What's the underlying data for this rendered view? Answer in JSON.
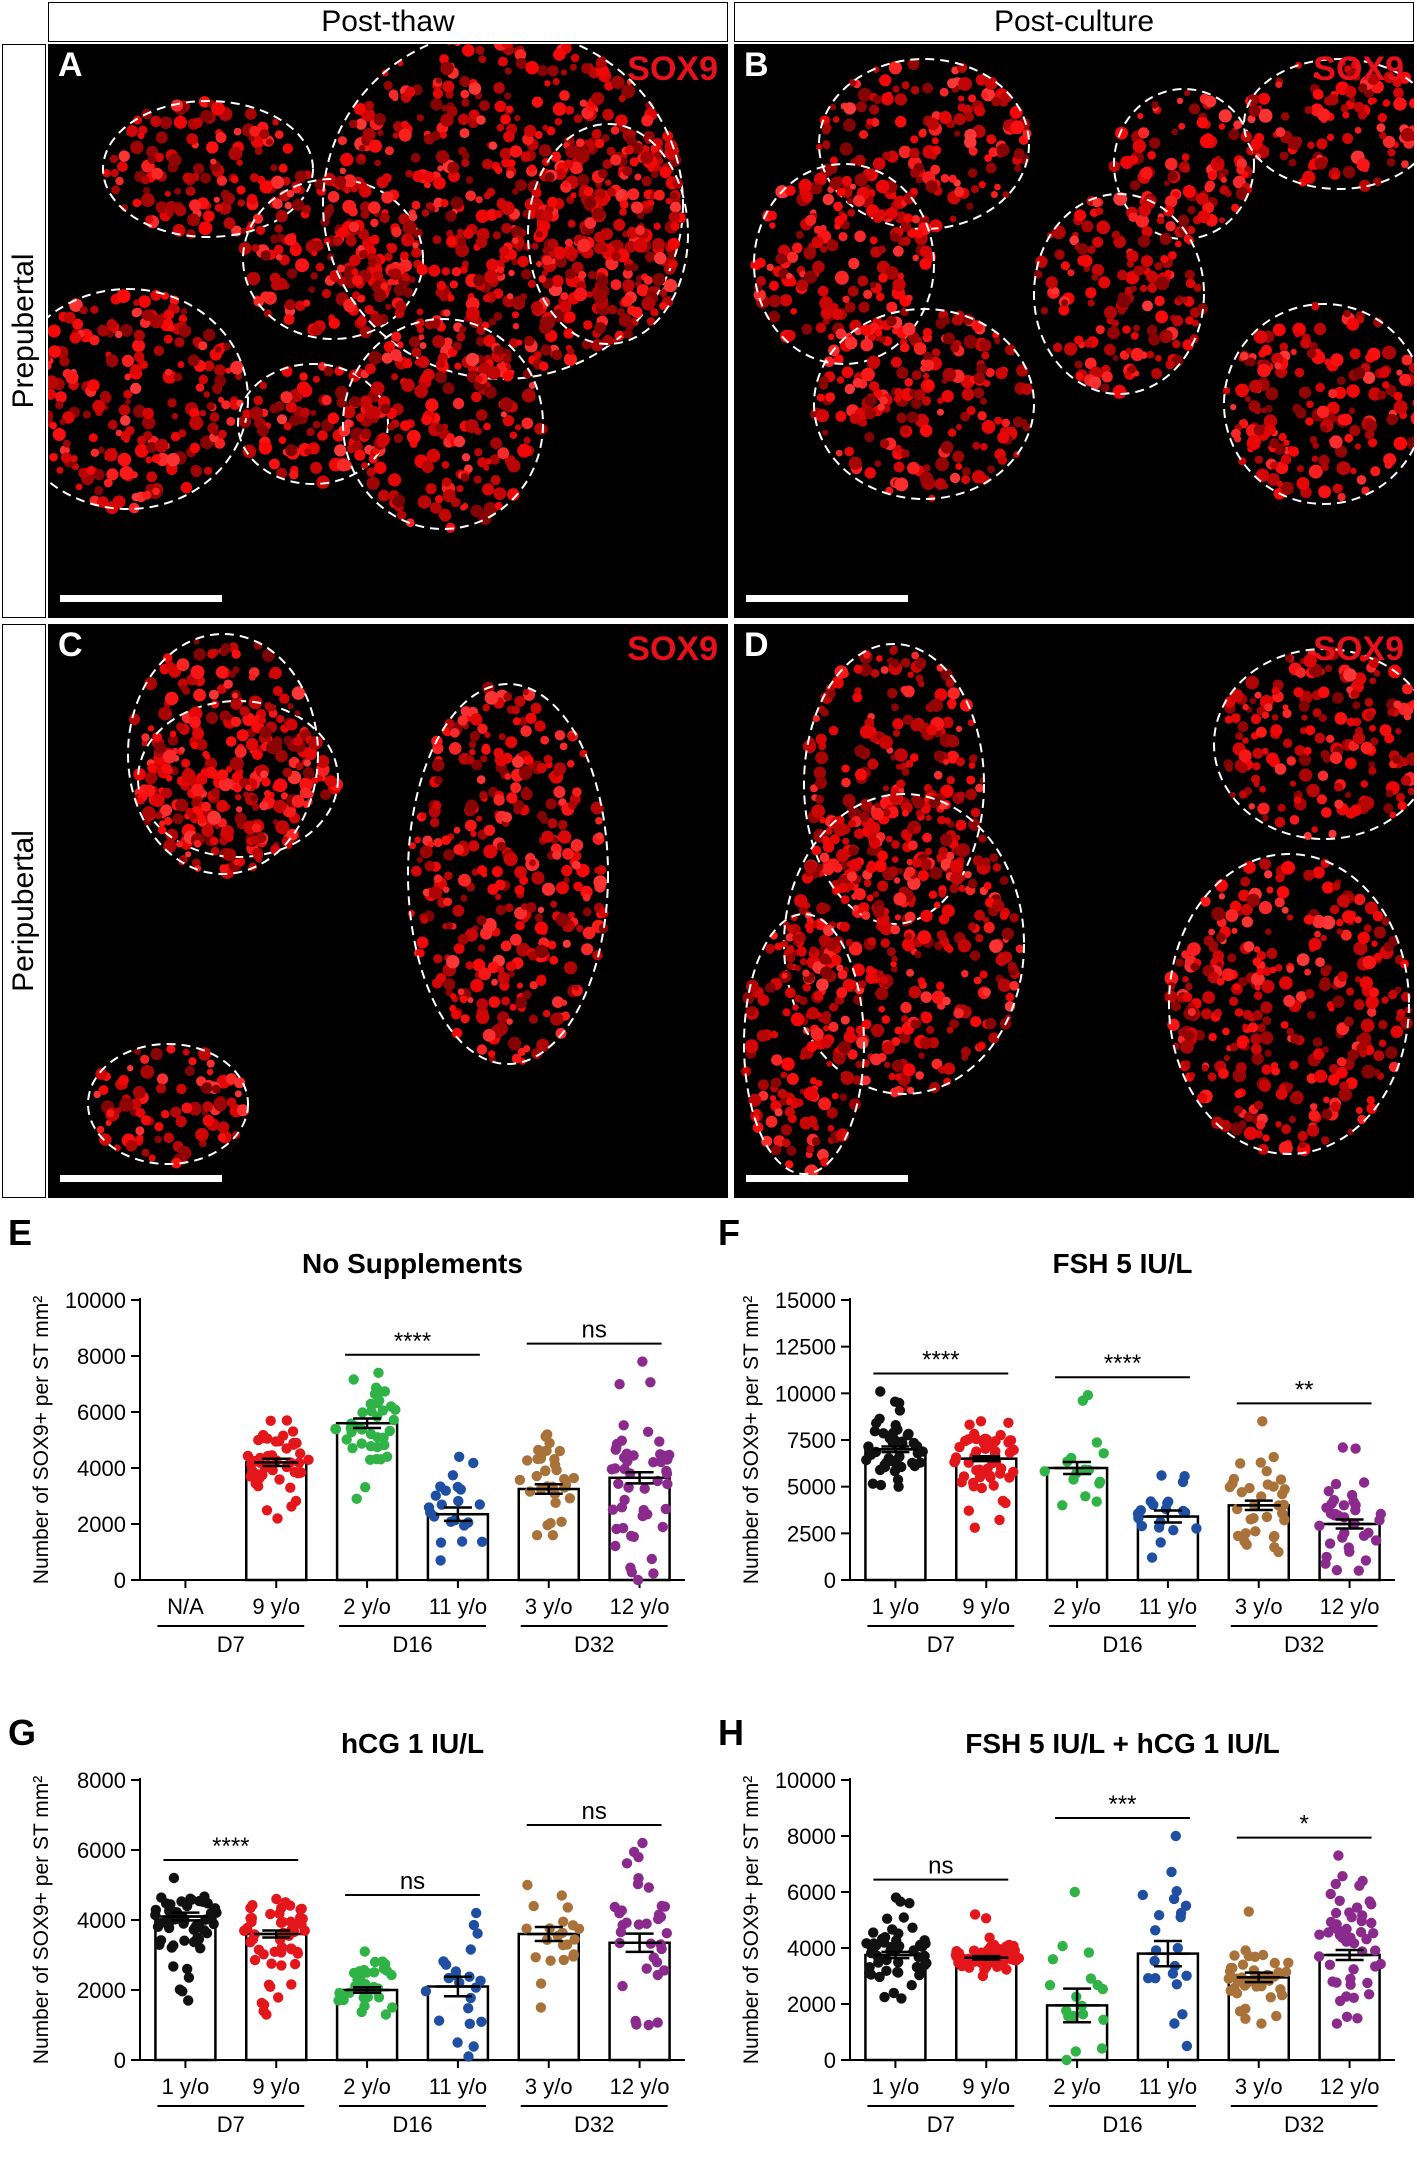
{
  "headers": {
    "col1": "Post-thaw",
    "col2": "Post-culture",
    "row1": "Prepubertal",
    "row2": "Peripubertal"
  },
  "micrographs": [
    {
      "letter": "A",
      "stain": "SOX9"
    },
    {
      "letter": "B",
      "stain": "SOX9"
    },
    {
      "letter": "C",
      "stain": "SOX9"
    },
    {
      "letter": "D",
      "stain": "SOX9"
    }
  ],
  "colors": {
    "black": "#111111",
    "red": "#e3161b",
    "green": "#2fb346",
    "blue": "#1f4fa2",
    "brown": "#a8723a",
    "purple": "#8a2a8c"
  },
  "chart_data": [
    {
      "letter": "E",
      "type": "scatter",
      "title": "No Supplements",
      "ylabel": "Number of SOX9+ per ST mm²",
      "ylim": [
        0,
        10000
      ],
      "yticks": [
        "0",
        "2000",
        "4000",
        "6000",
        "8000",
        "10000"
      ],
      "categories": [
        "N/A",
        "9 y/o",
        "2 y/o",
        "11 y/o",
        "3 y/o",
        "12 y/o"
      ],
      "groups": [
        "D7",
        "D16",
        "D32"
      ],
      "series": [
        {
          "mean": null,
          "sem": null,
          "min": null,
          "max": null,
          "n": 0,
          "color": "black"
        },
        {
          "mean": 4200,
          "sem": 130,
          "min": 2200,
          "max": 5700,
          "n": 50,
          "color": "red"
        },
        {
          "mean": 5600,
          "sem": 170,
          "min": 2900,
          "max": 7400,
          "n": 40,
          "color": "green"
        },
        {
          "mean": 2350,
          "sem": 240,
          "min": 700,
          "max": 4400,
          "n": 22,
          "color": "blue"
        },
        {
          "mean": 3250,
          "sem": 170,
          "min": 1600,
          "max": 5200,
          "n": 35,
          "color": "brown"
        },
        {
          "mean": 3650,
          "sem": 200,
          "min": 0,
          "max": 7800,
          "n": 50,
          "color": "purple"
        }
      ],
      "comparisons": [
        {
          "label": "****",
          "from": 2,
          "to": 3
        },
        {
          "label": "ns",
          "from": 4,
          "to": 5
        }
      ]
    },
    {
      "letter": "F",
      "type": "scatter",
      "title": "FSH 5 IU/L",
      "ylabel": "Number of SOX9+ per ST mm²",
      "ylim": [
        0,
        15000
      ],
      "yticks": [
        "0",
        "2500",
        "5000",
        "7500",
        "10000",
        "12500",
        "15000"
      ],
      "categories": [
        "1 y/o",
        "9 y/o",
        "2 y/o",
        "11 y/o",
        "3 y/o",
        "12 y/o"
      ],
      "groups": [
        "D7",
        "D16",
        "D32"
      ],
      "series": [
        {
          "mean": 7000,
          "sem": 150,
          "min": 5000,
          "max": 10100,
          "n": 45,
          "color": "black"
        },
        {
          "mean": 6500,
          "sem": 130,
          "min": 2800,
          "max": 8500,
          "n": 55,
          "color": "red"
        },
        {
          "mean": 6000,
          "sem": 320,
          "min": 4000,
          "max": 9900,
          "n": 16,
          "color": "green"
        },
        {
          "mean": 3400,
          "sem": 320,
          "min": 1200,
          "max": 5600,
          "n": 20,
          "color": "blue"
        },
        {
          "mean": 4000,
          "sem": 250,
          "min": 1500,
          "max": 8500,
          "n": 35,
          "color": "brown"
        },
        {
          "mean": 3000,
          "sem": 240,
          "min": 500,
          "max": 7100,
          "n": 35,
          "color": "purple"
        }
      ],
      "comparisons": [
        {
          "label": "****",
          "from": 0,
          "to": 1
        },
        {
          "label": "****",
          "from": 2,
          "to": 3
        },
        {
          "label": "**",
          "from": 4,
          "to": 5
        }
      ]
    },
    {
      "letter": "G",
      "type": "scatter",
      "title": "hCG 1 IU/L",
      "ylabel": "Number of SOX9+ per ST mm²",
      "ylim": [
        0,
        8000
      ],
      "yticks": [
        "0",
        "2000",
        "4000",
        "6000",
        "8000"
      ],
      "categories": [
        "1 y/o",
        "9 y/o",
        "2 y/o",
        "11 y/o",
        "3 y/o",
        "12 y/o"
      ],
      "groups": [
        "D7",
        "D16",
        "D32"
      ],
      "series": [
        {
          "mean": 4100,
          "sem": 110,
          "min": 1700,
          "max": 5200,
          "n": 60,
          "color": "black"
        },
        {
          "mean": 3600,
          "sem": 100,
          "min": 1300,
          "max": 4600,
          "n": 55,
          "color": "red"
        },
        {
          "mean": 2000,
          "sem": 80,
          "min": 1300,
          "max": 3100,
          "n": 35,
          "color": "green"
        },
        {
          "mean": 2100,
          "sem": 280,
          "min": 100,
          "max": 4200,
          "n": 22,
          "color": "blue"
        },
        {
          "mean": 3600,
          "sem": 200,
          "min": 1500,
          "max": 5000,
          "n": 22,
          "color": "brown"
        },
        {
          "mean": 3350,
          "sem": 260,
          "min": 1000,
          "max": 6200,
          "n": 35,
          "color": "purple"
        }
      ],
      "comparisons": [
        {
          "label": "****",
          "from": 0,
          "to": 1
        },
        {
          "label": "ns",
          "from": 2,
          "to": 3
        },
        {
          "label": "ns",
          "from": 4,
          "to": 5
        }
      ]
    },
    {
      "letter": "H",
      "type": "scatter",
      "title": "FSH 5 IU/L + hCG 1 IU/L",
      "ylabel": "Number of SOX9+ per ST mm²",
      "ylim": [
        0,
        10000
      ],
      "yticks": [
        "0",
        "2000",
        "4000",
        "6000",
        "8000",
        "10000"
      ],
      "categories": [
        "1 y/o",
        "9 y/o",
        "2 y/o",
        "11 y/o",
        "3 y/o",
        "12 y/o"
      ],
      "groups": [
        "D7",
        "D16",
        "D32"
      ],
      "series": [
        {
          "mean": 3750,
          "sem": 110,
          "min": 2200,
          "max": 5800,
          "n": 50,
          "color": "black"
        },
        {
          "mean": 3650,
          "sem": 60,
          "min": 3000,
          "max": 5200,
          "n": 55,
          "color": "red"
        },
        {
          "mean": 1950,
          "sem": 600,
          "min": 0,
          "max": 6000,
          "n": 18,
          "color": "green"
        },
        {
          "mean": 3800,
          "sem": 450,
          "min": 500,
          "max": 8000,
          "n": 22,
          "color": "blue"
        },
        {
          "mean": 2950,
          "sem": 170,
          "min": 1300,
          "max": 5300,
          "n": 40,
          "color": "brown"
        },
        {
          "mean": 3750,
          "sem": 180,
          "min": 1300,
          "max": 7300,
          "n": 50,
          "color": "purple"
        }
      ],
      "comparisons": [
        {
          "label": "ns",
          "from": 0,
          "to": 1
        },
        {
          "label": "***",
          "from": 2,
          "to": 3
        },
        {
          "label": "*",
          "from": 4,
          "to": 5
        }
      ]
    }
  ]
}
